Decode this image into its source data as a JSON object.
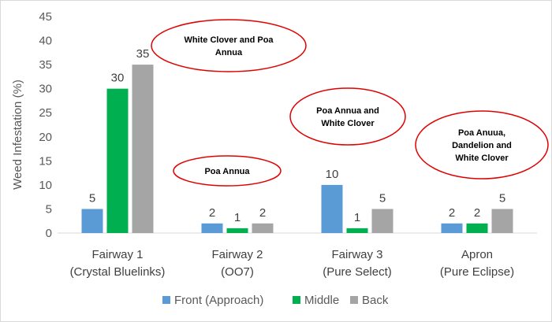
{
  "chart_data": {
    "type": "bar",
    "title": "",
    "ylabel": "Weed Infestation (%)",
    "xlabel": "",
    "ylim": [
      0,
      45
    ],
    "yticks": [
      0,
      5,
      10,
      15,
      20,
      25,
      30,
      35,
      40,
      45
    ],
    "grid": false,
    "legend_position": "bottom",
    "categories": [
      [
        "Fairway 1",
        "(Crystal Bluelinks)"
      ],
      [
        "Fairway 2",
        "(OO7)"
      ],
      [
        "Fairway 3",
        "(Pure Select)"
      ],
      [
        "Apron",
        "(Pure Eclipse)"
      ]
    ],
    "series": [
      {
        "name": "Front (Approach)",
        "color": "#5b9bd5",
        "values": [
          5,
          2,
          10,
          2
        ]
      },
      {
        "name": "Middle",
        "color": "#00b050",
        "values": [
          30,
          1,
          1,
          2
        ]
      },
      {
        "name": "Back",
        "color": "#a5a5a5",
        "values": [
          35,
          2,
          5,
          5
        ]
      }
    ],
    "annotations": [
      {
        "lines": [
          "White Clover and Poa",
          "Annua"
        ],
        "category": 0,
        "shape": "ellipse",
        "border_color": "#e00000"
      },
      {
        "lines": [
          "Poa Annua"
        ],
        "category": 1,
        "shape": "ellipse",
        "border_color": "#e00000"
      },
      {
        "lines": [
          "Poa Annua and",
          "White Clover"
        ],
        "category": 2,
        "shape": "ellipse",
        "border_color": "#e00000"
      },
      {
        "lines": [
          "Poa Anuua,",
          "Dandelion and",
          "White Clover"
        ],
        "category": 3,
        "shape": "ellipse",
        "border_color": "#e00000"
      }
    ]
  }
}
